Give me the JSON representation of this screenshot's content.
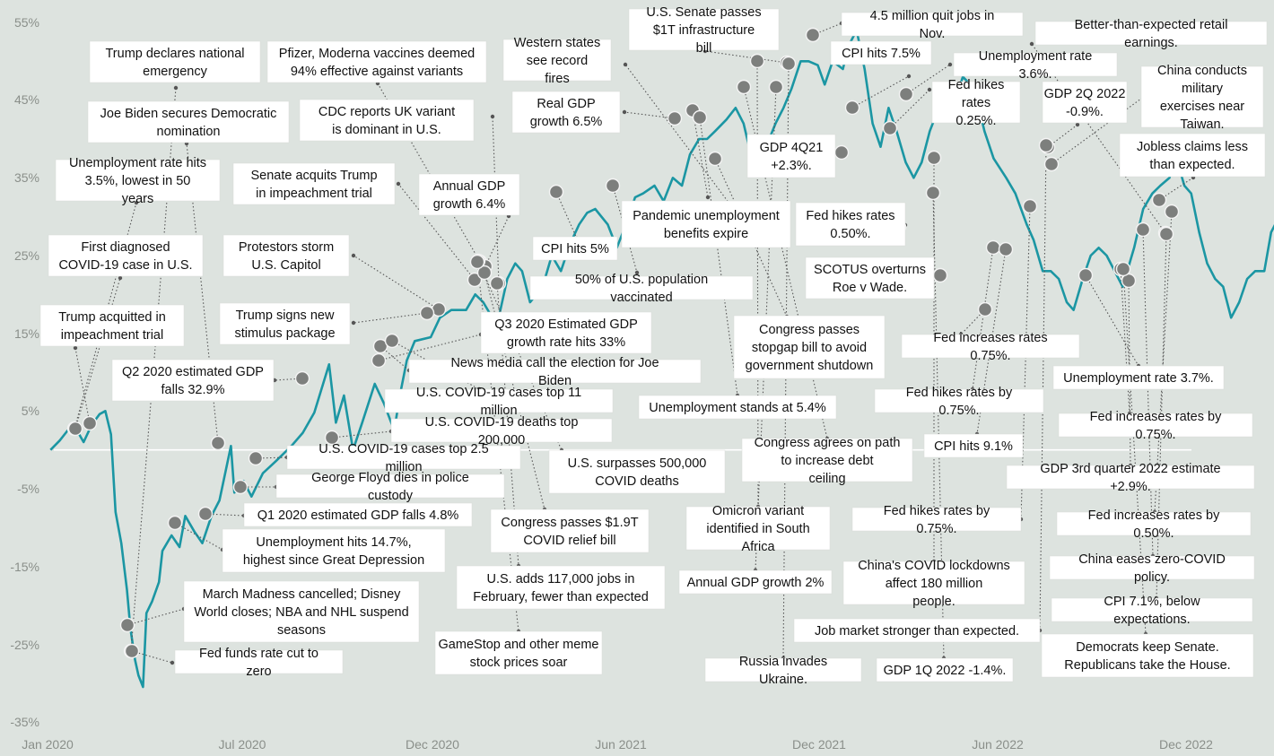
{
  "chart_data": {
    "type": "line",
    "title": "",
    "xlabel": "",
    "ylabel": "",
    "x_ticks": [
      "Jan 2020",
      "Jul 2020",
      "Dec 2020",
      "Jun 2021",
      "Dec 2021",
      "Jun 2022",
      "Dec 2022"
    ],
    "y_ticks": [
      "55%",
      "45%",
      "35%",
      "25%",
      "15%",
      "5%",
      "-5%",
      "-15%",
      "-25%",
      "-35%"
    ],
    "ylim": [
      -35,
      55
    ],
    "baseline": 0,
    "grid": false,
    "colors": {
      "background": "#dde3df",
      "line": "#1b96a3",
      "marker": "#7d7f7d",
      "baseline": "#ffffff"
    },
    "series": [
      {
        "points": [
          [
            "2020-01-02",
            0
          ],
          [
            "2020-01-10",
            1.2
          ],
          [
            "2020-01-17",
            2.5
          ],
          [
            "2020-01-24",
            2.8
          ],
          [
            "2020-01-31",
            1.0
          ],
          [
            "2020-02-07",
            3.2
          ],
          [
            "2020-02-14",
            4.6
          ],
          [
            "2020-02-19",
            5.0
          ],
          [
            "2020-02-24",
            2.0
          ],
          [
            "2020-02-28",
            -8.0
          ],
          [
            "2020-03-04",
            -12
          ],
          [
            "2020-03-09",
            -18
          ],
          [
            "2020-03-12",
            -23
          ],
          [
            "2020-03-16",
            -27
          ],
          [
            "2020-03-19",
            -29
          ],
          [
            "2020-03-23",
            -30.5
          ],
          [
            "2020-03-26",
            -21
          ],
          [
            "2020-03-31",
            -19.5
          ],
          [
            "2020-04-06",
            -17
          ],
          [
            "2020-04-09",
            -13
          ],
          [
            "2020-04-17",
            -11
          ],
          [
            "2020-04-24",
            -12.5
          ],
          [
            "2020-04-29",
            -8.5
          ],
          [
            "2020-05-07",
            -10.5
          ],
          [
            "2020-05-14",
            -12
          ],
          [
            "2020-05-22",
            -8.5
          ],
          [
            "2020-05-29",
            -6.5
          ],
          [
            "2020-06-08",
            0.5
          ],
          [
            "2020-06-11",
            -5.5
          ],
          [
            "2020-06-19",
            -4
          ],
          [
            "2020-06-26",
            -6
          ],
          [
            "2020-07-06",
            -3
          ],
          [
            "2020-07-17",
            -1.5
          ],
          [
            "2020-07-31",
            0.5
          ],
          [
            "2020-08-10",
            2.2
          ],
          [
            "2020-08-20",
            4.8
          ],
          [
            "2020-09-02",
            11
          ],
          [
            "2020-09-08",
            3.5
          ],
          [
            "2020-09-15",
            7
          ],
          [
            "2020-09-23",
            0
          ],
          [
            "2020-10-01",
            3.5
          ],
          [
            "2020-10-12",
            8.5
          ],
          [
            "2020-10-20",
            6
          ],
          [
            "2020-10-29",
            2.5
          ],
          [
            "2020-11-03",
            7
          ],
          [
            "2020-11-09",
            11.5
          ],
          [
            "2020-11-16",
            14
          ],
          [
            "2020-11-30",
            14.5
          ],
          [
            "2020-12-08",
            17
          ],
          [
            "2020-12-18",
            18
          ],
          [
            "2020-12-31",
            18
          ],
          [
            "2021-01-08",
            20
          ],
          [
            "2021-01-15",
            19
          ],
          [
            "2021-01-27",
            16
          ],
          [
            "2021-02-05",
            22
          ],
          [
            "2021-02-12",
            24
          ],
          [
            "2021-02-18",
            23
          ],
          [
            "2021-02-25",
            19
          ],
          [
            "2021-03-08",
            21
          ],
          [
            "2021-03-16",
            25
          ],
          [
            "2021-03-24",
            23
          ],
          [
            "2021-04-01",
            26.5
          ],
          [
            "2021-04-09",
            29
          ],
          [
            "2021-04-16",
            30.5
          ],
          [
            "2021-04-23",
            31
          ],
          [
            "2021-05-04",
            29
          ],
          [
            "2021-05-12",
            26
          ],
          [
            "2021-05-20",
            29
          ],
          [
            "2021-05-28",
            32.5
          ],
          [
            "2021-06-04",
            33
          ],
          [
            "2021-06-14",
            34
          ],
          [
            "2021-06-22",
            32
          ],
          [
            "2021-06-30",
            35
          ],
          [
            "2021-07-08",
            34
          ],
          [
            "2021-07-15",
            38
          ],
          [
            "2021-07-23",
            40
          ],
          [
            "2021-07-30",
            40
          ],
          [
            "2021-08-06",
            41
          ],
          [
            "2021-08-16",
            42.5
          ],
          [
            "2021-08-24",
            44
          ],
          [
            "2021-08-31",
            42
          ],
          [
            "2021-09-08",
            37
          ],
          [
            "2021-09-17",
            38
          ],
          [
            "2021-09-28",
            42
          ],
          [
            "2021-10-05",
            44
          ],
          [
            "2021-10-12",
            46.5
          ],
          [
            "2021-10-20",
            50
          ],
          [
            "2021-10-27",
            50
          ],
          [
            "2021-11-04",
            49.5
          ],
          [
            "2021-11-10",
            47
          ],
          [
            "2021-11-17",
            50
          ],
          [
            "2021-11-26",
            49
          ],
          [
            "2021-12-01",
            52
          ],
          [
            "2021-12-08",
            54
          ],
          [
            "2021-12-15",
            49
          ],
          [
            "2021-12-22",
            42
          ],
          [
            "2021-12-29",
            39
          ],
          [
            "2022-01-05",
            44
          ],
          [
            "2022-01-12",
            41
          ],
          [
            "2022-01-20",
            37
          ],
          [
            "2022-01-27",
            35
          ],
          [
            "2022-02-03",
            37
          ],
          [
            "2022-02-10",
            41
          ],
          [
            "2022-02-18",
            44
          ],
          [
            "2022-02-24",
            46
          ],
          [
            "2022-03-04",
            45
          ],
          [
            "2022-03-11",
            48
          ],
          [
            "2022-03-21",
            46.5
          ],
          [
            "2022-03-30",
            41
          ],
          [
            "2022-04-07",
            37.5
          ],
          [
            "2022-04-18",
            35
          ],
          [
            "2022-04-26",
            33
          ],
          [
            "2022-05-06",
            29
          ],
          [
            "2022-05-12",
            27
          ],
          [
            "2022-05-20",
            23
          ],
          [
            "2022-05-27",
            23
          ],
          [
            "2022-06-03",
            22
          ],
          [
            "2022-06-10",
            19
          ],
          [
            "2022-06-16",
            18
          ],
          [
            "2022-06-24",
            22
          ],
          [
            "2022-07-01",
            25
          ],
          [
            "2022-07-08",
            26
          ],
          [
            "2022-07-15",
            25
          ],
          [
            "2022-07-22",
            23
          ],
          [
            "2022-07-29",
            21
          ],
          [
            "2022-08-08",
            26
          ],
          [
            "2022-08-16",
            31
          ],
          [
            "2022-08-24",
            33
          ],
          [
            "2022-08-31",
            34
          ],
          [
            "2022-09-08",
            35
          ],
          [
            "2022-09-13",
            38
          ],
          [
            "2022-09-21",
            34
          ],
          [
            "2022-09-27",
            33
          ],
          [
            "2022-10-04",
            28
          ],
          [
            "2022-10-11",
            24
          ],
          [
            "2022-10-18",
            22
          ],
          [
            "2022-10-25",
            21
          ],
          [
            "2022-11-01",
            17
          ],
          [
            "2022-11-08",
            19
          ],
          [
            "2022-11-15",
            22
          ],
          [
            "2022-11-22",
            23
          ],
          [
            "2022-11-30",
            23
          ],
          [
            "2022-12-06",
            28
          ],
          [
            "2022-12-13",
            30
          ],
          [
            "2022-12-20",
            32
          ],
          [
            "2022-12-27",
            30
          ],
          [
            "2023-01-03",
            28
          ],
          [
            "2023-01-10",
            25
          ],
          [
            "2023-01-17",
            23
          ],
          [
            "2023-01-23",
            25
          ]
        ]
      }
    ],
    "annotations": [
      {
        "text": "Trump declares national emergency",
        "date": "2020-03-13",
        "value": -23.0
      },
      {
        "text": "Joe Biden secures Democratic nomination",
        "date": "2020-06-06",
        "value": 1.0
      },
      {
        "text": "Unemployment rate hits 3.5%, lowest in 50 years",
        "date": "2020-02-07",
        "value": 3.0
      },
      {
        "text": "First diagnosed COVID-19 case in U.S.",
        "date": "2020-01-21",
        "value": 2.5
      },
      {
        "text": "Trump acquitted in impeachment trial",
        "date": "2020-02-05",
        "value": 2.8
      },
      {
        "text": "Q2 2020 estimated GDP falls 32.9%",
        "date": "2020-07-30",
        "value": 7.0
      },
      {
        "text": "Pfizer, Moderna vaccines deemed 94% effective against variants",
        "date": "2021-03-10",
        "value": 23.0
      },
      {
        "text": "CDC reports UK variant is dominant in U.S.",
        "date": "2021-04-07",
        "value": 28.0
      },
      {
        "text": "Senate acquits Trump in impeachment trial",
        "date": "2021-02-13",
        "value": 24.0
      },
      {
        "text": "Protestors storm U.S. Capitol",
        "date": "2021-01-06",
        "value": 18.0
      },
      {
        "text": "Trump signs new stimulus package",
        "date": "2020-12-27",
        "value": 17.5
      },
      {
        "text": "Annual GDP growth 6.4%",
        "date": "2021-03-12",
        "value": 22.0
      },
      {
        "text": "Western states see record fires",
        "date": "2021-09-14",
        "value": 38.0
      },
      {
        "text": "Real GDP growth 6.5%",
        "date": "2021-08-26",
        "value": 44.0
      },
      {
        "text": "U.S. Senate passes $1T infrastructure bill",
        "date": "2021-11-05",
        "value": 50.0
      },
      {
        "text": "4.5 million quit jobs in Nov.",
        "date": "2021-12-05",
        "value": 53.0
      },
      {
        "text": "CPI hits 7.5%",
        "date": "2022-02-10",
        "value": 44.0
      },
      {
        "text": "Better-than-expected retail earnings.",
        "date": "2022-11-23",
        "value": 31.0
      },
      {
        "text": "Unemployment rate 3.6%.",
        "date": "2022-03-04",
        "value": 45.5
      },
      {
        "text": "Fed hikes rates 0.25%.",
        "date": "2022-03-16",
        "value": 46.5
      },
      {
        "text": "GDP 2Q 2022 -0.9%.",
        "date": "2022-08-29",
        "value": 33.0
      },
      {
        "text": "China conducts military exercises near Taiwan.",
        "date": "2022-09-08",
        "value": 35.0
      },
      {
        "text": "Jobless claims less than expected.",
        "date": "2022-12-28",
        "value": 32.0
      },
      {
        "text": "GDP 4Q21 +2.3%.",
        "date": "2022-01-27",
        "value": 37.5
      },
      {
        "text": "Fed hikes rates 0.50%.",
        "date": "2022-05-04",
        "value": 29.0
      },
      {
        "text": "SCOTUS overturns Roe v Wade.",
        "date": "2022-06-24",
        "value": 21.0
      },
      {
        "text": "CPI hits 5%",
        "date": "2021-05-12",
        "value": 30.0
      },
      {
        "text": "Pandemic unemployment benefits expire",
        "date": "2021-09-06",
        "value": 41.0
      },
      {
        "text": "50% of U.S. population vaccinated",
        "date": "2021-05-25",
        "value": 32.5
      },
      {
        "text": "Q3 2020 Estimated GDP growth rate hits 33%",
        "date": "2020-10-29",
        "value": 11.5
      },
      {
        "text": "News media call the election for Joe Biden",
        "date": "2020-11-07",
        "value": 13.0
      },
      {
        "text": "U.S. COVID-19 cases top 11 million",
        "date": "2020-11-15",
        "value": 14.0
      },
      {
        "text": "U.S. COVID-19 deaths top 200,000",
        "date": "2020-09-22",
        "value": 1.5
      },
      {
        "text": "U.S. COVID-19 cases top 2.5 million",
        "date": "2020-06-28",
        "value": -1.5
      },
      {
        "text": "George Floyd dies in police custody",
        "date": "2020-06-15",
        "value": -4.5
      },
      {
        "text": "Q1 2020 estimated GDP falls 4.8%",
        "date": "2020-05-20",
        "value": -8.0
      },
      {
        "text": "Unemployment hits 14.7%, highest since Great Depression",
        "date": "2020-05-08",
        "value": -9.5
      },
      {
        "text": "March Madness cancelled; Disney World closes; NBA and NHL suspend seasons",
        "date": "2020-03-12",
        "value": -21.0
      },
      {
        "text": "Fed funds rate cut to zero",
        "date": "2020-03-15",
        "value": -26.0
      },
      {
        "text": "U.S. surpasses 500,000 COVID deaths",
        "date": "2021-02-22",
        "value": 21.5
      },
      {
        "text": "Congress passes $1.9T COVID relief bill",
        "date": "2021-03-10",
        "value": 22.0
      },
      {
        "text": "U.S. adds 117,000 jobs in February, fewer than expected",
        "date": "2021-03-05",
        "value": 23.5
      },
      {
        "text": "GameStop and other meme stock prices soar",
        "date": "2021-01-27",
        "value": 16.0
      },
      {
        "text": "Unemployment stands at 5.4%",
        "date": "2021-08-06",
        "value": 41.0
      },
      {
        "text": "Congress passes stopgap bill to avoid government shutdown",
        "date": "2021-09-30",
        "value": 42.0
      },
      {
        "text": "Congress agrees on path to increase debt ceiling",
        "date": "2021-10-07",
        "value": 44.0
      },
      {
        "text": "Omicron variant identified in South Africa",
        "date": "2021-11-26",
        "value": 49.0
      },
      {
        "text": "Annual GDP growth 2%",
        "date": "2021-12-20",
        "value": 45.0
      },
      {
        "text": "Russia invades Ukraine.",
        "date": "2022-02-24",
        "value": 46.0
      },
      {
        "text": "China's COVID lockdowns affect 180 million people.",
        "date": "2022-04-28",
        "value": 34.0
      },
      {
        "text": "Job market stronger than expected.",
        "date": "2022-07-08",
        "value": 26.0
      },
      {
        "text": "GDP 1Q 2022 -1.4%.",
        "date": "2022-04-28",
        "value": 33.5
      },
      {
        "text": "Fed increases rates 0.75%.",
        "date": "2022-06-15",
        "value": 18.5
      },
      {
        "text": "Fed hikes rates by 0.75%.",
        "date": "2022-07-27",
        "value": 25.0
      },
      {
        "text": "CPI hits 9.1%",
        "date": "2022-07-13",
        "value": 25.5
      },
      {
        "text": "Fed hikes rates by 0.75%.",
        "date": "2022-09-21",
        "value": 31.5
      },
      {
        "text": "Unemployment rate 3.7%.",
        "date": "2022-11-04",
        "value": 19.5
      },
      {
        "text": "Fed increases rates by 0.75%.",
        "date": "2022-11-02",
        "value": 20.5
      },
      {
        "text": "GDP 3rd quarter 2022 estimate +2.9%.",
        "date": "2022-10-27",
        "value": 22.5
      },
      {
        "text": "Fed increases rates by 0.50%.",
        "date": "2022-12-14",
        "value": 31.0
      },
      {
        "text": "China eases zero-COVID policy.",
        "date": "2022-12-07",
        "value": 29.0
      },
      {
        "text": "CPI 7.1%, below expectations.",
        "date": "2022-12-13",
        "value": 30.0
      },
      {
        "text": "Democrats keep Senate. Republicans take the House.",
        "date": "2022-11-09",
        "value": 28.5
      }
    ]
  }
}
